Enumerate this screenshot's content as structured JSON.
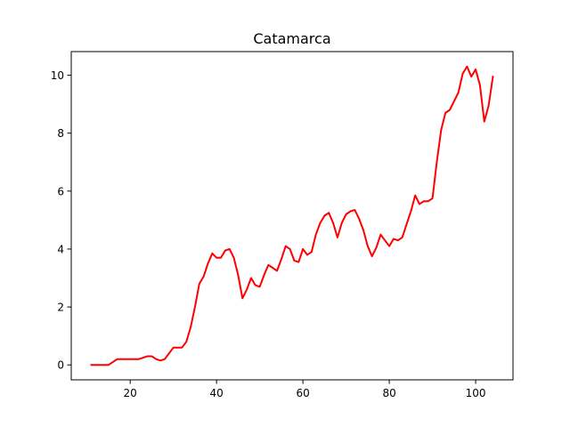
{
  "chart_data": {
    "type": "line",
    "title": "Catamarca",
    "xlabel": "",
    "ylabel": "",
    "xlim": [
      6.35,
      108.65
    ],
    "ylim": [
      -0.515,
      10.815
    ],
    "xticks": [
      20,
      40,
      60,
      80,
      100
    ],
    "yticks": [
      0,
      2,
      4,
      6,
      8,
      10
    ],
    "grid": false,
    "series": [
      {
        "color": "#ff0000",
        "x": [
          11,
          12,
          13,
          14,
          15,
          16,
          17,
          18,
          19,
          20,
          21,
          22,
          23,
          24,
          25,
          26,
          27,
          28,
          29,
          30,
          31,
          32,
          33,
          34,
          35,
          36,
          37,
          38,
          39,
          40,
          41,
          42,
          43,
          44,
          45,
          46,
          47,
          48,
          49,
          50,
          51,
          52,
          53,
          54,
          55,
          56,
          57,
          58,
          59,
          60,
          61,
          62,
          63,
          64,
          65,
          66,
          67,
          68,
          69,
          70,
          71,
          72,
          73,
          74,
          75,
          76,
          77,
          78,
          79,
          80,
          81,
          82,
          83,
          84,
          85,
          86,
          87,
          88,
          89,
          90,
          91,
          92,
          93,
          94,
          95,
          96,
          97,
          98,
          99,
          100,
          101,
          102,
          103,
          104
        ],
        "y": [
          0,
          0,
          0,
          0,
          0,
          0.1,
          0.2,
          0.2,
          0.2,
          0.2,
          0.2,
          0.2,
          0.25,
          0.3,
          0.3,
          0.2,
          0.15,
          0.2,
          0.4,
          0.6,
          0.6,
          0.6,
          0.8,
          1.3,
          2.0,
          2.8,
          3.05,
          3.5,
          3.85,
          3.7,
          3.7,
          3.95,
          4.0,
          3.7,
          3.1,
          2.3,
          2.6,
          3.0,
          2.75,
          2.7,
          3.1,
          3.45,
          3.35,
          3.25,
          3.65,
          4.1,
          4.0,
          3.6,
          3.55,
          4.0,
          3.8,
          3.9,
          4.5,
          4.9,
          5.15,
          5.25,
          4.9,
          4.4,
          4.9,
          5.2,
          5.3,
          5.35,
          5.05,
          4.65,
          4.1,
          3.75,
          4.05,
          4.5,
          4.3,
          4.1,
          4.35,
          4.3,
          4.4,
          4.85,
          5.3,
          5.85,
          5.55,
          5.65,
          5.65,
          5.75,
          7.0,
          8.1,
          8.7,
          8.8,
          9.1,
          9.4,
          10.05,
          10.3,
          9.95,
          10.2,
          9.65,
          8.4,
          8.95,
          9.95
        ]
      }
    ]
  }
}
